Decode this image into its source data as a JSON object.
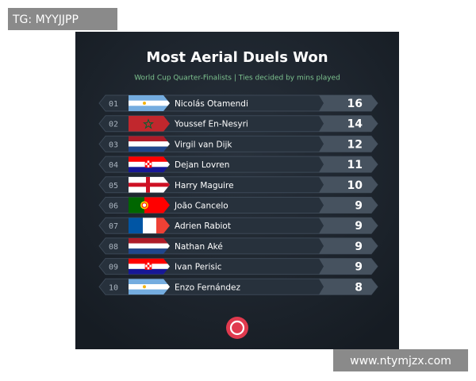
{
  "watermark_top": "TG: MYYJJPP",
  "header": {
    "title": "Most Aerial Duels Won",
    "subtitle": "World Cup Quarter-Finalists | Ties decided by mins played"
  },
  "rows": [
    [
      "01",
      "Nicolás Otamendi",
      16
    ],
    [
      "02",
      "Youssef En-Nesyri",
      14
    ],
    [
      "03",
      "Virgil van Dijk",
      12
    ],
    [
      "04",
      "Dejan Lovren",
      11
    ],
    [
      "05",
      "Harry Maguire",
      10
    ],
    [
      "06",
      "João Cancelo",
      9
    ],
    [
      "07",
      "Adrien Rabiot",
      9
    ],
    [
      "08",
      "Nathan Aké",
      9
    ],
    [
      "09",
      "Ivan Perisic",
      9
    ],
    [
      "10",
      "Enzo Fernández",
      8
    ]
  ],
  "watermark_bottom": "www.ntymjzx.com"
}
